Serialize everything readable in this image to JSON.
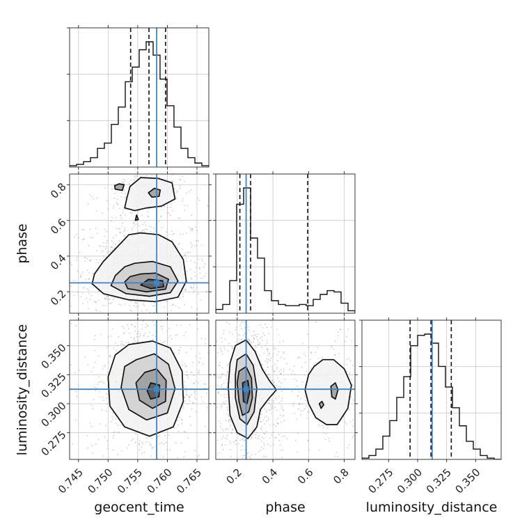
{
  "chart_data": {
    "type": "corner",
    "parameters": [
      "geocent_time",
      "phase",
      "luminosity_distance"
    ],
    "truth": {
      "geocent_time": 0.7582,
      "phase": 0.25,
      "luminosity_distance": 0.3125
    },
    "colors": {
      "truth": "#3a86c8",
      "lines": "#111111",
      "grid": "#c8c8c8"
    },
    "axes": {
      "geocent_time": {
        "label": "geocent_time",
        "range": [
          0.7435,
          0.767
        ],
        "ticks": [
          "0.745",
          "0.750",
          "0.755",
          "0.760",
          "0.765"
        ],
        "tick_values": [
          0.745,
          0.75,
          0.755,
          0.76,
          0.765
        ]
      },
      "phase": {
        "label": "phase",
        "range": [
          0.08,
          0.86
        ],
        "ticks": [
          "0.2",
          "0.4",
          "0.6",
          "0.8"
        ],
        "tick_values": [
          0.2,
          0.4,
          0.6,
          0.8
        ]
      },
      "luminosity_distance": {
        "label": "luminosity_distance",
        "range": [
          0.252,
          0.372
        ],
        "ticks": [
          "0.275",
          "0.300",
          "0.325",
          "0.350"
        ],
        "tick_values": [
          0.275,
          0.3,
          0.325,
          0.35
        ]
      }
    },
    "marginals": {
      "geocent_time": {
        "bin_edges": [
          0.7435,
          0.74467,
          0.74585,
          0.74702,
          0.7482,
          0.74937,
          0.75055,
          0.75172,
          0.7529,
          0.75407,
          0.75525,
          0.75642,
          0.7576,
          0.75877,
          0.75995,
          0.76112,
          0.7623,
          0.76347,
          0.76465,
          0.76582,
          0.767
        ],
        "counts": [
          1,
          2,
          4,
          7,
          14,
          18,
          32,
          45,
          64,
          75,
          88,
          94,
          84,
          66,
          46,
          30,
          14,
          7,
          3,
          1
        ],
        "quantiles": [
          0.7538,
          0.7569,
          0.7597
        ]
      },
      "phase": {
        "bin_edges": [
          0.08,
          0.119,
          0.158,
          0.197,
          0.236,
          0.275,
          0.314,
          0.353,
          0.392,
          0.431,
          0.47,
          0.509,
          0.548,
          0.587,
          0.626,
          0.665,
          0.704,
          0.743,
          0.782,
          0.821,
          0.86
        ],
        "counts": [
          3,
          7,
          26,
          87,
          100,
          60,
          44,
          18,
          10,
          7,
          6,
          6,
          7,
          6,
          11,
          15,
          18,
          17,
          8,
          2
        ],
        "quantiles": [
          0.215,
          0.275,
          0.595
        ]
      },
      "luminosity_distance": {
        "bin_edges": [
          0.252,
          0.258,
          0.264,
          0.27,
          0.276,
          0.282,
          0.288,
          0.294,
          0.3,
          0.306,
          0.312,
          0.318,
          0.324,
          0.33,
          0.336,
          0.342,
          0.348,
          0.354,
          0.36,
          0.366,
          0.372
        ],
        "counts": [
          1,
          3,
          8,
          18,
          30,
          48,
          64,
          88,
          96,
          97,
          90,
          72,
          56,
          40,
          26,
          14,
          8,
          3,
          1,
          0
        ],
        "quantiles": [
          0.2935,
          0.3115,
          0.329
        ]
      }
    },
    "joint": [
      {
        "x": "geocent_time",
        "y": "phase",
        "contours": [
          [
            [
              0.7535,
              0.52
            ],
            [
              0.7555,
              0.53
            ],
            [
              0.7585,
              0.52
            ],
            [
              0.7608,
              0.48
            ],
            [
              0.7627,
              0.38
            ],
            [
              0.7632,
              0.26
            ],
            [
              0.7618,
              0.17
            ],
            [
              0.758,
              0.145
            ],
            [
              0.7535,
              0.155
            ],
            [
              0.7492,
              0.19
            ],
            [
              0.7473,
              0.245
            ],
            [
              0.7477,
              0.3
            ],
            [
              0.7492,
              0.37
            ],
            [
              0.7515,
              0.45
            ]
          ],
          [
            [
              0.7545,
              0.36
            ],
            [
              0.7575,
              0.37
            ],
            [
              0.7605,
              0.34
            ],
            [
              0.7618,
              0.26
            ],
            [
              0.7605,
              0.195
            ],
            [
              0.757,
              0.175
            ],
            [
              0.753,
              0.19
            ],
            [
              0.7505,
              0.235
            ],
            [
              0.7512,
              0.29
            ],
            [
              0.7528,
              0.34
            ]
          ],
          [
            [
              0.7555,
              0.3
            ],
            [
              0.758,
              0.305
            ],
            [
              0.7602,
              0.27
            ],
            [
              0.7597,
              0.215
            ],
            [
              0.7565,
              0.2
            ],
            [
              0.7533,
              0.218
            ],
            [
              0.7528,
              0.255
            ],
            [
              0.7537,
              0.285
            ]
          ],
          [
            [
              0.7568,
              0.27
            ],
            [
              0.7592,
              0.262
            ],
            [
              0.7594,
              0.228
            ],
            [
              0.7572,
              0.218
            ],
            [
              0.7555,
              0.238
            ]
          ],
          [
            [
              0.7555,
              0.84
            ],
            [
              0.7585,
              0.835
            ],
            [
              0.7608,
              0.81
            ],
            [
              0.7613,
              0.72
            ],
            [
              0.759,
              0.68
            ],
            [
              0.7565,
              0.67
            ],
            [
              0.7545,
              0.655
            ],
            [
              0.7528,
              0.67
            ],
            [
              0.7532,
              0.73
            ],
            [
              0.7537,
              0.79
            ]
          ],
          [
            [
              0.7578,
              0.78
            ],
            [
              0.7588,
              0.77
            ],
            [
              0.7586,
              0.735
            ],
            [
              0.7574,
              0.73
            ],
            [
              0.7568,
              0.755
            ]
          ],
          [
            [
              0.7519,
              0.805
            ],
            [
              0.7527,
              0.8
            ],
            [
              0.7524,
              0.768
            ],
            [
              0.7512,
              0.775
            ],
            [
              0.7511,
              0.795
            ]
          ],
          [
            [
              0.7548,
              0.63
            ],
            [
              0.7551,
              0.605
            ],
            [
              0.7546,
              0.6
            ]
          ]
        ]
      },
      {
        "x": "geocent_time",
        "y": "luminosity_distance",
        "contours": [
          [
            [
              0.7535,
              0.351
            ],
            [
              0.7575,
              0.354
            ],
            [
              0.7605,
              0.348
            ],
            [
              0.7625,
              0.328
            ],
            [
              0.7627,
              0.302
            ],
            [
              0.761,
              0.28
            ],
            [
              0.757,
              0.272
            ],
            [
              0.7528,
              0.28
            ],
            [
              0.7503,
              0.298
            ],
            [
              0.75,
              0.323
            ],
            [
              0.7512,
              0.342
            ]
          ],
          [
            [
              0.7548,
              0.338
            ],
            [
              0.7578,
              0.343
            ],
            [
              0.7602,
              0.334
            ],
            [
              0.7613,
              0.313
            ],
            [
              0.76,
              0.292
            ],
            [
              0.7565,
              0.286
            ],
            [
              0.7535,
              0.295
            ],
            [
              0.7522,
              0.314
            ],
            [
              0.7528,
              0.332
            ]
          ],
          [
            [
              0.7562,
              0.327
            ],
            [
              0.7582,
              0.33
            ],
            [
              0.7598,
              0.32
            ],
            [
              0.7597,
              0.302
            ],
            [
              0.7575,
              0.296
            ],
            [
              0.7553,
              0.303
            ],
            [
              0.7547,
              0.318
            ]
          ],
          [
            [
              0.7572,
              0.318
            ],
            [
              0.7587,
              0.316
            ],
            [
              0.7586,
              0.306
            ],
            [
              0.7572,
              0.304
            ],
            [
              0.7566,
              0.311
            ]
          ]
        ]
      },
      {
        "x": "phase",
        "y": "luminosity_distance",
        "contours": [
          [
            [
              0.19,
              0.35
            ],
            [
              0.25,
              0.355
            ],
            [
              0.3,
              0.345
            ],
            [
              0.34,
              0.33
            ],
            [
              0.38,
              0.32
            ],
            [
              0.42,
              0.312
            ],
            [
              0.38,
              0.305
            ],
            [
              0.33,
              0.295
            ],
            [
              0.31,
              0.28
            ],
            [
              0.26,
              0.27
            ],
            [
              0.2,
              0.275
            ],
            [
              0.16,
              0.29
            ],
            [
              0.15,
              0.315
            ],
            [
              0.16,
              0.335
            ]
          ],
          [
            [
              0.2,
              0.338
            ],
            [
              0.25,
              0.343
            ],
            [
              0.29,
              0.333
            ],
            [
              0.31,
              0.313
            ],
            [
              0.295,
              0.293
            ],
            [
              0.255,
              0.282
            ],
            [
              0.215,
              0.287
            ],
            [
              0.19,
              0.305
            ],
            [
              0.19,
              0.325
            ]
          ],
          [
            [
              0.21,
              0.328
            ],
            [
              0.25,
              0.332
            ],
            [
              0.28,
              0.322
            ],
            [
              0.285,
              0.305
            ],
            [
              0.265,
              0.293
            ],
            [
              0.23,
              0.29
            ],
            [
              0.21,
              0.302
            ],
            [
              0.2,
              0.318
            ]
          ],
          [
            [
              0.23,
              0.318
            ],
            [
              0.26,
              0.32
            ],
            [
              0.27,
              0.31
            ],
            [
              0.255,
              0.3
            ],
            [
              0.235,
              0.302
            ]
          ],
          [
            [
              0.63,
              0.332
            ],
            [
              0.68,
              0.338
            ],
            [
              0.74,
              0.338
            ],
            [
              0.8,
              0.33
            ],
            [
              0.84,
              0.316
            ],
            [
              0.82,
              0.296
            ],
            [
              0.76,
              0.282
            ],
            [
              0.7,
              0.282
            ],
            [
              0.64,
              0.288
            ],
            [
              0.6,
              0.3
            ],
            [
              0.58,
              0.312
            ],
            [
              0.6,
              0.325
            ]
          ],
          [
            [
              0.725,
              0.315
            ],
            [
              0.75,
              0.318
            ],
            [
              0.765,
              0.312
            ],
            [
              0.75,
              0.304
            ],
            [
              0.73,
              0.306
            ]
          ],
          [
            [
              0.66,
              0.3
            ],
            [
              0.675,
              0.302
            ],
            [
              0.685,
              0.299
            ],
            [
              0.67,
              0.296
            ]
          ]
        ]
      }
    ]
  }
}
